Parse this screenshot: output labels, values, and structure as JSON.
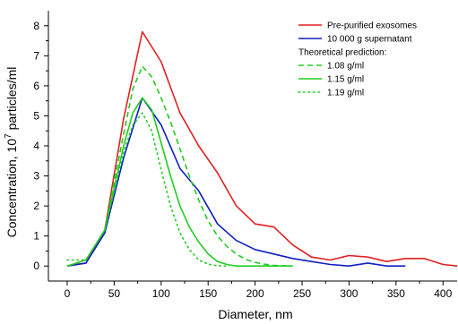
{
  "chart_data": {
    "type": "line",
    "xlabel": "Diameter, nm",
    "ylabel_prefix": "Concentration, 10",
    "ylabel_exp": "7",
    "ylabel_suffix": " particles/ml",
    "xlim": [
      -20,
      415
    ],
    "ylim": [
      -0.5,
      8.5
    ],
    "x_ticks": [
      0,
      50,
      100,
      150,
      200,
      250,
      300,
      350,
      400
    ],
    "y_ticks": [
      0,
      1,
      2,
      3,
      4,
      5,
      6,
      7,
      8
    ],
    "grid": false,
    "legend_placement": "top-right",
    "legend_header": "Theoretical prediction:",
    "series": [
      {
        "name": "Pre-purified exosomes",
        "color": "#e02020",
        "dash": "solid",
        "x": [
          0,
          20,
          40,
          60,
          80,
          100,
          120,
          140,
          160,
          180,
          200,
          220,
          240,
          260,
          280,
          300,
          320,
          340,
          360,
          380,
          400,
          415
        ],
        "y": [
          0,
          0.1,
          1.2,
          4.9,
          7.8,
          6.8,
          5.1,
          4.0,
          3.1,
          2.0,
          1.4,
          1.3,
          0.7,
          0.3,
          0.2,
          0.35,
          0.3,
          0.15,
          0.25,
          0.25,
          0.05,
          0.0
        ]
      },
      {
        "name": "10 000 g supernatant",
        "color": "#1020c0",
        "dash": "solid",
        "x": [
          0,
          20,
          40,
          60,
          80,
          100,
          120,
          140,
          160,
          180,
          200,
          220,
          240,
          260,
          280,
          300,
          320,
          340,
          360
        ],
        "y": [
          0,
          0.1,
          1.1,
          3.6,
          5.6,
          4.7,
          3.25,
          2.5,
          1.4,
          0.85,
          0.55,
          0.4,
          0.25,
          0.15,
          0.05,
          0.0,
          0.1,
          0.0,
          0.0
        ]
      },
      {
        "name": "1.08 g/ml",
        "color": "#22cc22",
        "dash": "dashed",
        "x": [
          0,
          20,
          40,
          60,
          70,
          80,
          90,
          100,
          110,
          120,
          130,
          140,
          150,
          160,
          170,
          180,
          190,
          200,
          210,
          220,
          240
        ],
        "y": [
          0,
          0.2,
          1.2,
          4.4,
          5.9,
          6.65,
          6.3,
          5.6,
          4.8,
          3.9,
          3.0,
          2.2,
          1.5,
          1.0,
          0.65,
          0.4,
          0.22,
          0.12,
          0.06,
          0.02,
          0.0
        ]
      },
      {
        "name": "1.15 g/ml",
        "color": "#22cc22",
        "dash": "solid",
        "x": [
          0,
          20,
          40,
          60,
          70,
          80,
          90,
          100,
          110,
          120,
          130,
          140,
          150,
          160,
          170,
          180,
          200,
          240
        ],
        "y": [
          0,
          0.2,
          1.2,
          4.0,
          5.1,
          5.6,
          5.2,
          4.1,
          3.0,
          2.0,
          1.3,
          0.8,
          0.4,
          0.15,
          0.05,
          0.0,
          0.0,
          0.0
        ]
      },
      {
        "name": "1.19 g/ml",
        "color": "#22cc22",
        "dash": "dotted",
        "x": [
          0,
          20,
          40,
          60,
          70,
          80,
          90,
          100,
          110,
          120,
          130,
          140,
          150,
          160,
          170
        ],
        "y": [
          0.2,
          0.2,
          1.2,
          3.8,
          4.7,
          5.1,
          4.5,
          3.2,
          2.0,
          1.1,
          0.55,
          0.2,
          0.06,
          0.01,
          0.0
        ]
      }
    ]
  }
}
